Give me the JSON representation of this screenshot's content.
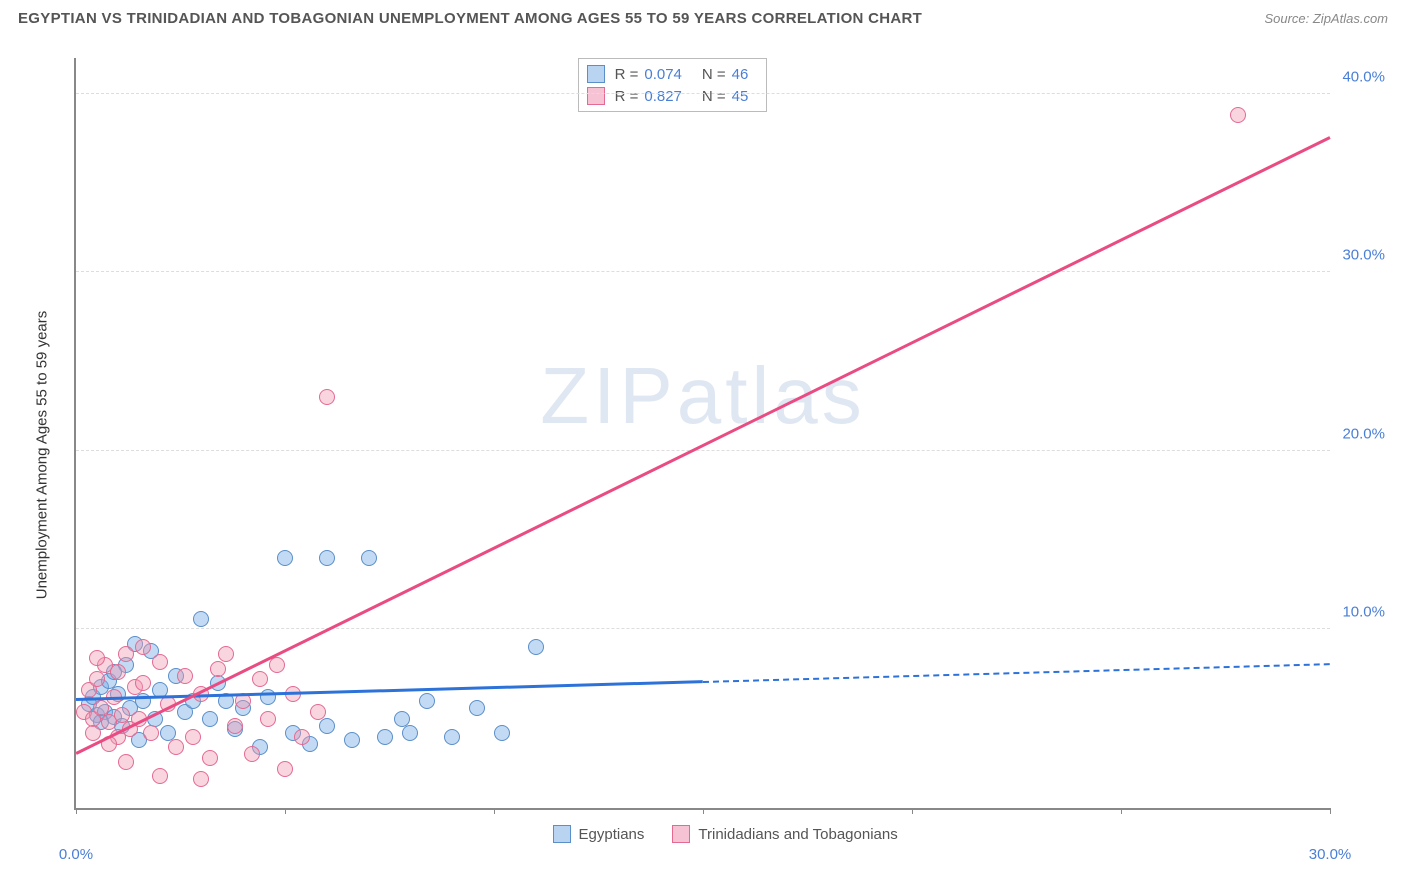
{
  "title": "EGYPTIAN VS TRINIDADIAN AND TOBAGONIAN UNEMPLOYMENT AMONG AGES 55 TO 59 YEARS CORRELATION CHART",
  "source": "Source: ZipAtlas.com",
  "watermark": "ZIPatlas",
  "y_axis_label": "Unemployment Among Ages 55 to 59 years",
  "chart": {
    "type": "scatter",
    "background_color": "#ffffff",
    "grid_color": "#dddddd",
    "axis_color": "#888888",
    "tick_label_color": "#4a7fd6",
    "xlim": [
      0,
      30
    ],
    "ylim": [
      0,
      42
    ],
    "x_ticks": [
      0,
      5,
      10,
      15,
      20,
      25,
      30
    ],
    "x_tick_labels": {
      "0": "0.0%",
      "30": "30.0%"
    },
    "y_ticks": [
      10,
      20,
      30,
      40
    ],
    "y_tick_labels": {
      "10": "10.0%",
      "20": "20.0%",
      "30": "30.0%",
      "40": "40.0%"
    },
    "marker_radius": 8,
    "series": [
      {
        "name": "Egyptians",
        "color_fill": "rgba(122,174,230,0.45)",
        "color_stroke": "#5a8fc9",
        "swatch_fill": "#b9d4f0",
        "swatch_border": "#5a8fc9",
        "R": "0.074",
        "N": "46",
        "trend": {
          "x1": 0,
          "y1": 6.0,
          "x2": 15,
          "y2": 7.0,
          "x2_dash": 30,
          "y2_dash": 8.0,
          "color": "#2d72d9"
        },
        "points": [
          [
            0.3,
            5.8
          ],
          [
            0.4,
            6.2
          ],
          [
            0.5,
            5.2
          ],
          [
            0.6,
            6.8
          ],
          [
            0.7,
            5.4
          ],
          [
            0.8,
            7.1
          ],
          [
            0.9,
            5.1
          ],
          [
            1.0,
            6.4
          ],
          [
            1.1,
            4.6
          ],
          [
            1.2,
            8.0
          ],
          [
            1.3,
            5.6
          ],
          [
            1.4,
            9.2
          ],
          [
            1.5,
            3.8
          ],
          [
            1.6,
            6.0
          ],
          [
            1.8,
            8.8
          ],
          [
            1.9,
            5.0
          ],
          [
            2.0,
            6.6
          ],
          [
            2.2,
            4.2
          ],
          [
            2.4,
            7.4
          ],
          [
            2.6,
            5.4
          ],
          [
            2.8,
            6.0
          ],
          [
            3.0,
            10.6
          ],
          [
            3.2,
            5.0
          ],
          [
            3.4,
            7.0
          ],
          [
            3.6,
            6.0
          ],
          [
            3.8,
            4.4
          ],
          [
            4.0,
            5.6
          ],
          [
            4.4,
            3.4
          ],
          [
            4.6,
            6.2
          ],
          [
            5.0,
            14.0
          ],
          [
            5.2,
            4.2
          ],
          [
            5.6,
            3.6
          ],
          [
            6.0,
            14.0
          ],
          [
            6.0,
            4.6
          ],
          [
            6.6,
            3.8
          ],
          [
            7.0,
            14.0
          ],
          [
            7.4,
            4.0
          ],
          [
            7.8,
            5.0
          ],
          [
            8.0,
            4.2
          ],
          [
            8.4,
            6.0
          ],
          [
            9.0,
            4.0
          ],
          [
            9.6,
            5.6
          ],
          [
            10.2,
            4.2
          ],
          [
            11.0,
            9.0
          ],
          [
            0.6,
            4.8
          ],
          [
            0.9,
            7.6
          ]
        ]
      },
      {
        "name": "Trinidadians and Tobagonians",
        "color_fill": "rgba(240,150,175,0.4)",
        "color_stroke": "#e46a92",
        "swatch_fill": "#f5c3d3",
        "swatch_border": "#e46a92",
        "R": "0.827",
        "N": "45",
        "trend": {
          "x1": 0,
          "y1": 3.0,
          "x2": 30,
          "y2": 37.5,
          "color": "#e94b82"
        },
        "points": [
          [
            0.2,
            5.4
          ],
          [
            0.3,
            6.6
          ],
          [
            0.4,
            5.0
          ],
          [
            0.5,
            7.2
          ],
          [
            0.6,
            5.6
          ],
          [
            0.7,
            8.0
          ],
          [
            0.8,
            4.8
          ],
          [
            0.9,
            6.2
          ],
          [
            1.0,
            7.6
          ],
          [
            1.1,
            5.2
          ],
          [
            1.2,
            8.6
          ],
          [
            1.3,
            4.4
          ],
          [
            1.4,
            6.8
          ],
          [
            1.5,
            5.0
          ],
          [
            1.6,
            7.0
          ],
          [
            1.8,
            4.2
          ],
          [
            2.0,
            8.2
          ],
          [
            2.2,
            5.8
          ],
          [
            2.4,
            3.4
          ],
          [
            2.6,
            7.4
          ],
          [
            2.8,
            4.0
          ],
          [
            3.0,
            6.4
          ],
          [
            3.2,
            2.8
          ],
          [
            3.4,
            7.8
          ],
          [
            3.6,
            8.6
          ],
          [
            3.8,
            4.6
          ],
          [
            4.0,
            6.0
          ],
          [
            4.2,
            3.0
          ],
          [
            4.4,
            7.2
          ],
          [
            4.6,
            5.0
          ],
          [
            4.8,
            8.0
          ],
          [
            5.0,
            2.2
          ],
          [
            5.2,
            6.4
          ],
          [
            5.4,
            4.0
          ],
          [
            5.8,
            5.4
          ],
          [
            6.0,
            23.0
          ],
          [
            1.0,
            4.0
          ],
          [
            0.5,
            8.4
          ],
          [
            0.8,
            3.6
          ],
          [
            1.2,
            2.6
          ],
          [
            2.0,
            1.8
          ],
          [
            3.0,
            1.6
          ],
          [
            1.6,
            9.0
          ],
          [
            27.8,
            38.8
          ],
          [
            0.4,
            4.2
          ]
        ]
      }
    ]
  },
  "legend_top": {
    "r_label": "R =",
    "n_label": "N ="
  },
  "legend_bottom_labels": [
    "Egyptians",
    "Trinidadians and Tobagonians"
  ]
}
